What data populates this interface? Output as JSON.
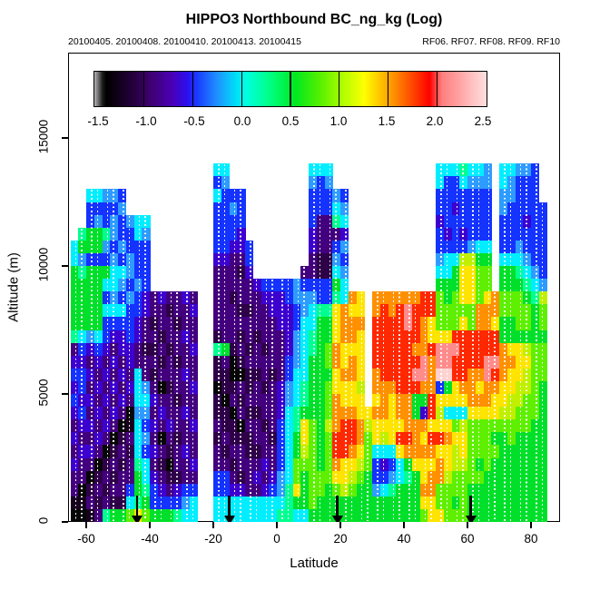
{
  "header": {
    "title": "HIPPO3 Northbound BC_ng_kg (Log)",
    "subtitle_left": "20100405. 20100408. 20100410. 20100413. 20100415",
    "subtitle_right": "RF06. RF07. RF08. RF09. RF10"
  },
  "axes": {
    "x_label": "Latitude",
    "y_label": "Altitude (m)",
    "x_ticks": [
      {
        "v": -60,
        "label": "-60"
      },
      {
        "v": -40,
        "label": "-40"
      },
      {
        "v": -20,
        "label": "-20"
      },
      {
        "v": 0,
        "label": "0"
      },
      {
        "v": 20,
        "label": "20"
      },
      {
        "v": 40,
        "label": "40"
      },
      {
        "v": 60,
        "label": "60"
      },
      {
        "v": 80,
        "label": "80"
      }
    ],
    "y_ticks": [
      {
        "v": 0,
        "label": "0"
      },
      {
        "v": 5000,
        "label": "5000"
      },
      {
        "v": 10000,
        "label": "10000"
      },
      {
        "v": 15000,
        "label": "15000"
      }
    ]
  },
  "colorbar": {
    "min": -1.5,
    "max": 2.5,
    "tick_values": [
      -1.5,
      -1.0,
      -0.5,
      0.0,
      0.5,
      1.0,
      1.5,
      2.0,
      2.5
    ],
    "tick_labels": [
      "-1.5",
      "-1.0",
      "-0.5",
      "0.0",
      "0.5",
      "1.0",
      "1.5",
      "2.0",
      "2.5"
    ],
    "gradient_stops": [
      {
        "v": -1.5,
        "c": "#b4b4b4"
      },
      {
        "v": -1.46,
        "c": "#6e6e6e"
      },
      {
        "v": -1.42,
        "c": "#1e1e1e"
      },
      {
        "v": -1.38,
        "c": "#000000"
      },
      {
        "v": -1.1,
        "c": "#26003d"
      },
      {
        "v": -0.95,
        "c": "#3c0068"
      },
      {
        "v": -0.7,
        "c": "#4a00b8"
      },
      {
        "v": -0.55,
        "c": "#2a10f0"
      },
      {
        "v": -0.45,
        "c": "#1a3cff"
      },
      {
        "v": -0.25,
        "c": "#1e90ff"
      },
      {
        "v": -0.05,
        "c": "#00e0f8"
      },
      {
        "v": 0.05,
        "c": "#00ffe0"
      },
      {
        "v": 0.3,
        "c": "#00ff7f"
      },
      {
        "v": 0.55,
        "c": "#00e820"
      },
      {
        "v": 0.8,
        "c": "#55f000"
      },
      {
        "v": 1.05,
        "c": "#b4ff00"
      },
      {
        "v": 1.25,
        "c": "#ffff00"
      },
      {
        "v": 1.5,
        "c": "#ffa500"
      },
      {
        "v": 1.75,
        "c": "#ff4400"
      },
      {
        "v": 1.92,
        "c": "#ff0000"
      },
      {
        "v": 2.0,
        "c": "#ff5555"
      },
      {
        "v": 2.05,
        "c": "#ff8080"
      },
      {
        "v": 2.2,
        "c": "#ff9d9d"
      },
      {
        "v": 2.35,
        "c": "#ffc0c0"
      },
      {
        "v": 2.5,
        "c": "#ffdede"
      }
    ]
  },
  "chart_data": {
    "type": "heatmap",
    "title": "HIPPO3 Northbound BC_ng_kg (Log)",
    "xlabel": "Latitude",
    "ylabel": "Altitude (m)",
    "x_range": [
      -67,
      89
    ],
    "y_range": [
      0,
      18300
    ],
    "value_range_log": [
      -1.5,
      2.5
    ],
    "lat_start": -65,
    "lat_step": 2.5,
    "alt_step_m": 500,
    "n_cols": 61,
    "n_rows": 28,
    "palette": {
      "k": "#060606",
      "0": "#16001e",
      "1": "#2e0048",
      "2": "#43007e",
      "3": "#3c00cf",
      "4": "#1433ff",
      "5": "#2e9cff",
      "6": "#00eeff",
      "7": "#00ff90",
      "8": "#00e02a",
      "9": "#5ef000",
      "a": "#c0f000",
      "b": "#ffe400",
      "c": "#ff9000",
      "d": "#ff2800",
      "e": "#ff8c8c",
      "f": "#ffd2d2"
    },
    "palette_log_values": {
      "k": -1.45,
      "0": -1.375,
      "1": -1.125,
      "2": -0.875,
      "3": -0.625,
      "4": -0.375,
      "5": -0.125,
      "6": 0.125,
      "7": 0.375,
      "8": 0.625,
      "9": 0.875,
      "a": 1.125,
      "b": 1.375,
      "c": 1.625,
      "d": 1.875,
      "e": 2.125,
      "f": 2.375
    },
    "rows_top_down": [
      "..................66..........666.............6667665.66554..",
      "..................45..........545.............6446555.65444..",
      "..66554...........6444........44454...........4444444.55444..",
      "..44445...........4454........44465...........4434444.544444.",
      "..45454566........4444........42276...........3444444.444344.",
      ".788754465........4443........32223...........4343444.444444.",
      "6888545444........44334.......32245...........4444566.445444.",
      "6544454544........33224.......21154...........566aa88.666544.",
      "8788866544........22213......221165...........668bb99.887654.",
      "8888665454........22222344445444486...........888bb99.888765.",
      "8888454543232232..22122233345554476cb.ccccccdd989bb9bc99987a.",
      "8888666443221223..222112233345677bcbb.cdcdeddd99999ccc999989.",
      "8888444432122122..222222223346688bccc.ddddedcb999b9ccb889989.",
      "7656433432212232..122121222356788bccb.ddddddcbbbdddddd888888.",
      "2434323321121223..781212122356789cbbb.dddddccdeeedddddcbba99.",
      "3323232322212122..12k122222456889cbcb.ddddddeceeddddeeccbb99.",
      "4432323262122232..11kk11212466888bccb.cddddeecffddccedcbba99.",
      "34232323652k1223..k11212123567889bbba.cccdddcc48bccbccbbaa98.",
      "4332323266322122..1k2122223567889cbbb.bcbcc88dbbbbcccbbaa998.",
      "3423232k55232232..11k211223678889cccbbccbcc83da666bbbbaa9998.",
      "233232k064323223..211k2212467b98acddcabbbbcccbbb9a9999999988.",
      "32232k12652k2122..12111221468b989dddc9babddcbddcbb9998898888.",
      "2332k12164321232..21221122468a989ddcb9666bccccbbab9999888888.",
      "322k12127621k223..221222324699989cbba943468bbbcbaa9898888888.",
      "22k1212286321122..442123235698999bba98445678bcca999988888888.",
      "2k12122487432344..4433223457b89989a988567888cc99998888888888.",
      "0021211678444456..66666666678898888888888888bb99898888888888.",
      "kk027889b9888766..666666667766888888888888889bb9998888888888."
    ],
    "arrows_lat": [
      -44,
      -15,
      19,
      61
    ],
    "flight_track_style": {
      "color": "#ffffff",
      "pattern": "dotted-vertical"
    }
  }
}
